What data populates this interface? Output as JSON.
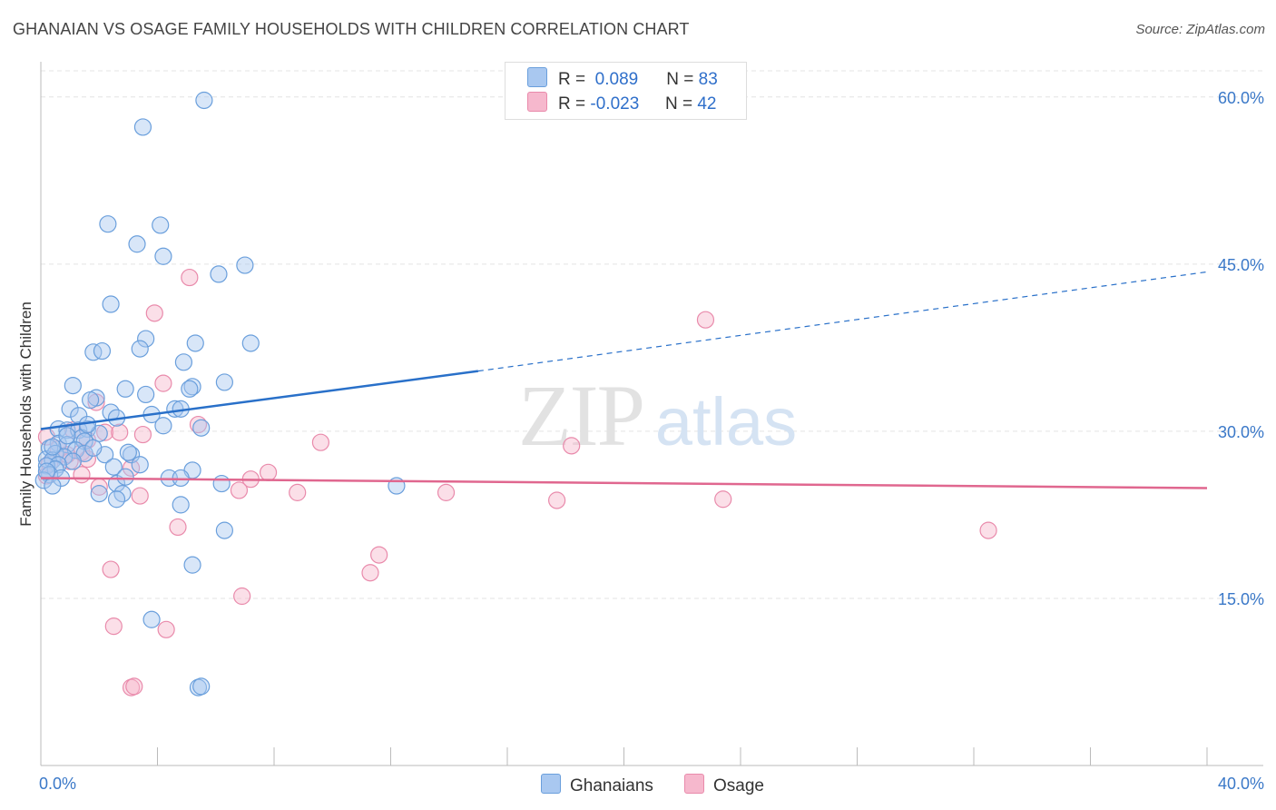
{
  "title": "GHANAIAN VS OSAGE FAMILY HOUSEHOLDS WITH CHILDREN CORRELATION CHART",
  "source": "Source: ZipAtlas.com",
  "watermark": {
    "zip": "ZIP",
    "atlas": "atlas"
  },
  "legend": {
    "rows": [
      {
        "r_label": "R =",
        "r_value": "0.089",
        "n_label": "N =",
        "n_value": "83"
      },
      {
        "r_label": "R =",
        "r_value": "-0.023",
        "n_label": "N =",
        "n_value": "42"
      }
    ]
  },
  "bottom_legend": {
    "ghanaians": "Ghanaians",
    "osage": "Osage"
  },
  "colors": {
    "ghanaians_fill": "#a9c8f0",
    "ghanaians_stroke": "#6a9fdc",
    "ghanaians_line": "#2970c9",
    "osage_fill": "#f6b8cd",
    "osage_stroke": "#e98aab",
    "osage_line": "#e0678f",
    "tick_text": "#3a78c8"
  },
  "chart_data": {
    "type": "scatter",
    "title": "GHANAIAN VS OSAGE FAMILY HOUSEHOLDS WITH CHILDREN CORRELATION CHART",
    "xlabel": "",
    "ylabel": "Family Households with Children",
    "xlim": [
      0,
      40
    ],
    "ylim": [
      0,
      63
    ],
    "x_tick_labels": [
      "0.0%",
      "40.0%"
    ],
    "y_ticks": [
      15,
      30,
      45,
      60
    ],
    "y_tick_labels": [
      "15.0%",
      "30.0%",
      "45.0%",
      "60.0%"
    ],
    "grid": true,
    "legend_position": "top-center",
    "series": [
      {
        "name": "Ghanaians",
        "r": 0.089,
        "n": 83,
        "trend": {
          "x0": 0,
          "y0": 30.2,
          "x1_solid": 15,
          "y1_solid": 35.4,
          "x1": 40,
          "y1": 44.3
        },
        "points": [
          [
            5.6,
            59.7
          ],
          [
            3.5,
            57.3
          ],
          [
            2.3,
            48.6
          ],
          [
            4.1,
            48.5
          ],
          [
            3.3,
            46.8
          ],
          [
            4.2,
            45.7
          ],
          [
            6.1,
            44.1
          ],
          [
            7.0,
            44.9
          ],
          [
            2.4,
            41.4
          ],
          [
            3.6,
            38.3
          ],
          [
            7.2,
            37.9
          ],
          [
            5.3,
            37.9
          ],
          [
            1.8,
            37.1
          ],
          [
            2.1,
            37.2
          ],
          [
            3.4,
            37.4
          ],
          [
            4.9,
            36.2
          ],
          [
            6.3,
            34.4
          ],
          [
            5.2,
            34.0
          ],
          [
            1.1,
            34.1
          ],
          [
            2.9,
            33.8
          ],
          [
            3.6,
            33.3
          ],
          [
            5.1,
            33.8
          ],
          [
            1.9,
            33.0
          ],
          [
            1.7,
            32.8
          ],
          [
            1.0,
            32.0
          ],
          [
            4.6,
            32.0
          ],
          [
            4.8,
            32.0
          ],
          [
            2.4,
            31.7
          ],
          [
            1.3,
            31.4
          ],
          [
            2.6,
            31.2
          ],
          [
            3.8,
            31.5
          ],
          [
            0.6,
            30.2
          ],
          [
            0.9,
            30.1
          ],
          [
            1.3,
            30.1
          ],
          [
            1.6,
            30.2
          ],
          [
            4.2,
            30.5
          ],
          [
            5.5,
            30.3
          ],
          [
            2.0,
            29.8
          ],
          [
            1.4,
            29.4
          ],
          [
            1.5,
            29.1
          ],
          [
            0.6,
            28.9
          ],
          [
            0.9,
            28.8
          ],
          [
            0.3,
            28.5
          ],
          [
            0.5,
            28.0
          ],
          [
            1.2,
            28.3
          ],
          [
            1.5,
            28.0
          ],
          [
            2.2,
            27.9
          ],
          [
            3.1,
            27.9
          ],
          [
            0.2,
            27.5
          ],
          [
            0.4,
            27.4
          ],
          [
            0.8,
            27.7
          ],
          [
            1.1,
            27.3
          ],
          [
            0.6,
            27.0
          ],
          [
            0.2,
            26.9
          ],
          [
            0.5,
            26.6
          ],
          [
            2.5,
            26.8
          ],
          [
            3.4,
            27.0
          ],
          [
            5.2,
            26.5
          ],
          [
            0.3,
            26.1
          ],
          [
            0.7,
            25.8
          ],
          [
            4.4,
            25.8
          ],
          [
            4.8,
            25.8
          ],
          [
            0.1,
            25.6
          ],
          [
            2.6,
            25.3
          ],
          [
            6.2,
            25.3
          ],
          [
            12.2,
            25.1
          ],
          [
            0.4,
            25.1
          ],
          [
            2.0,
            24.4
          ],
          [
            2.8,
            24.4
          ],
          [
            2.6,
            23.9
          ],
          [
            4.8,
            23.4
          ],
          [
            6.3,
            21.1
          ],
          [
            5.2,
            18.0
          ],
          [
            3.8,
            13.1
          ],
          [
            5.4,
            7.0
          ],
          [
            5.5,
            7.1
          ],
          [
            0.2,
            26.4
          ],
          [
            1.8,
            28.5
          ],
          [
            3.0,
            28.1
          ],
          [
            0.9,
            29.6
          ],
          [
            1.6,
            30.6
          ],
          [
            2.9,
            25.9
          ],
          [
            0.4,
            28.6
          ]
        ]
      },
      {
        "name": "Osage",
        "r": -0.023,
        "n": 42,
        "trend": {
          "x0": 0,
          "y0": 25.8,
          "x1": 40,
          "y1": 24.9
        },
        "points": [
          [
            5.1,
            43.8
          ],
          [
            3.9,
            40.6
          ],
          [
            22.8,
            40.0
          ],
          [
            4.2,
            34.3
          ],
          [
            1.9,
            32.6
          ],
          [
            5.4,
            30.6
          ],
          [
            1.1,
            30.1
          ],
          [
            2.2,
            29.9
          ],
          [
            2.7,
            29.9
          ],
          [
            3.5,
            29.7
          ],
          [
            1.6,
            29.2
          ],
          [
            0.2,
            29.5
          ],
          [
            9.6,
            29.0
          ],
          [
            18.2,
            28.7
          ],
          [
            0.6,
            28.4
          ],
          [
            1.4,
            28.1
          ],
          [
            1.6,
            27.5
          ],
          [
            0.3,
            27.1
          ],
          [
            1.0,
            27.3
          ],
          [
            3.1,
            26.7
          ],
          [
            7.8,
            26.3
          ],
          [
            1.4,
            26.1
          ],
          [
            0.2,
            26.0
          ],
          [
            7.2,
            25.7
          ],
          [
            2.0,
            25.0
          ],
          [
            6.8,
            24.7
          ],
          [
            8.8,
            24.5
          ],
          [
            13.9,
            24.5
          ],
          [
            3.4,
            24.2
          ],
          [
            17.7,
            23.8
          ],
          [
            23.4,
            23.9
          ],
          [
            4.7,
            21.4
          ],
          [
            32.5,
            21.1
          ],
          [
            11.6,
            18.9
          ],
          [
            2.4,
            17.6
          ],
          [
            11.3,
            17.3
          ],
          [
            6.9,
            15.2
          ],
          [
            2.5,
            12.5
          ],
          [
            4.3,
            12.2
          ],
          [
            3.1,
            7.0
          ],
          [
            3.2,
            7.1
          ],
          [
            0.9,
            27.9
          ]
        ]
      }
    ]
  }
}
